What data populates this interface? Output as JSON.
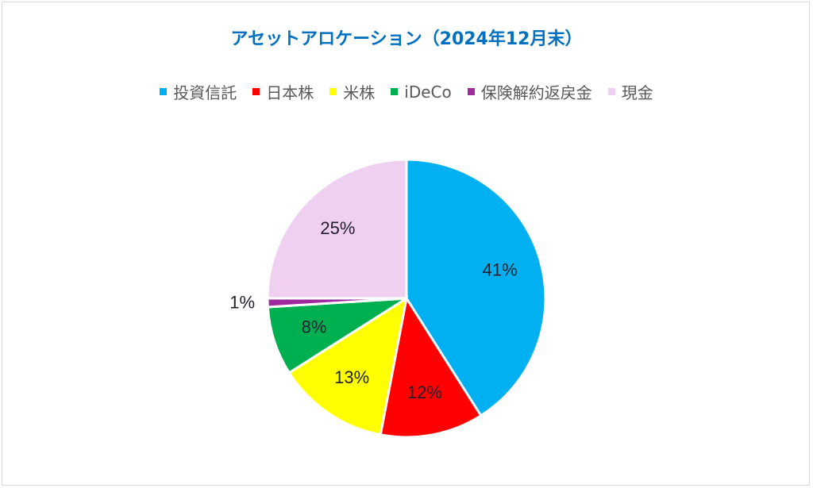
{
  "chart_data": {
    "type": "pie",
    "title": "アセットアロケーション（2024年12月末）",
    "categories": [
      "投資信託",
      "日本株",
      "米株",
      "iDeCo",
      "保険解約返戻金",
      "現金"
    ],
    "values": [
      41,
      12,
      13,
      8,
      1,
      25
    ],
    "labels": [
      "41%",
      "12%",
      "13%",
      "8%",
      "1%",
      "25%"
    ],
    "colors": [
      "#00b0f0",
      "#ff0000",
      "#ffff00",
      "#00b050",
      "#9e2a9e",
      "#f0d0f0"
    ],
    "legend_placement": "top"
  }
}
